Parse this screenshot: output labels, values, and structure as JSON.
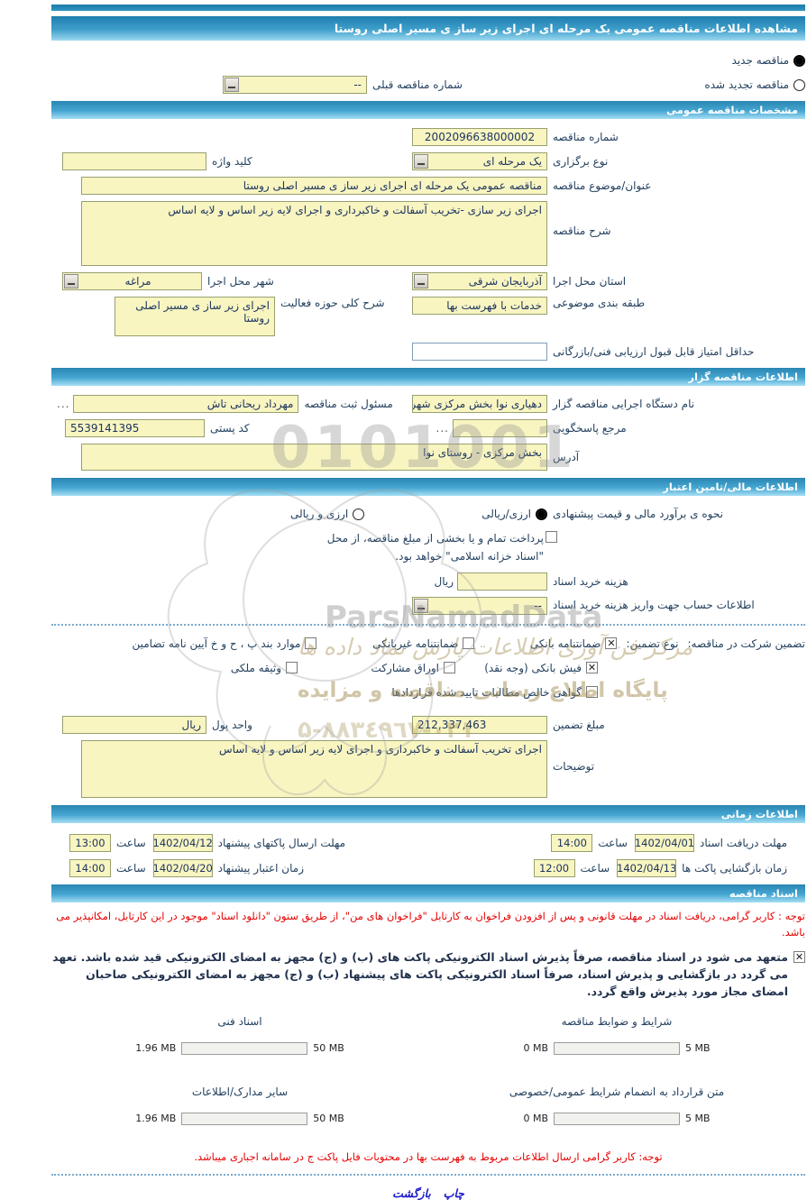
{
  "title": "مشاهده اطلاعات مناقصه عمومی یک مرحله ای اجرای زیر ساز ی مسیر اصلی روستا",
  "top": {
    "radio_new": {
      "label": "مناقصه جدید",
      "selected": true
    },
    "radio_renew": {
      "label": "مناقصه تجدید شده",
      "selected": false
    },
    "prev_no": {
      "label": "شماره مناقصه قبلی",
      "value": "--"
    }
  },
  "specs": {
    "header": "مشخصات مناقصه عمومی",
    "tender_no": {
      "label": "شماره مناقصه",
      "value": "2002096638000002"
    },
    "type": {
      "label": "نوع برگزاری",
      "value": "یک مرحله ای"
    },
    "keyword": {
      "label": "کلید واژه",
      "value": ""
    },
    "subject": {
      "label": "عنوان/موضوع مناقصه",
      "value": "مناقصه عمومی یک مرحله ای اجرای زیر ساز ی مسیر اصلی روستا"
    },
    "description": {
      "label": "شرح مناقصه",
      "value": "اجرای زیر سازی -تخریب آسفالت و خاکبرداری و اجرای لایه زیر اساس و لایه اساس"
    },
    "province": {
      "label": "استان محل اجرا",
      "value": "آذربایجان شرقی"
    },
    "city": {
      "label": "شهر محل اجرا",
      "value": "مراغه"
    },
    "category": {
      "label": "طبقه بندی موضوعی",
      "value": "خدمات با فهرست بها"
    },
    "activity": {
      "label": "شرح کلی حوزه فعالیت",
      "value": "اجرای زیر ساز ی مسیر اصلی روستا"
    },
    "min_score": {
      "label": "حداقل امتیاز قابل قبول ارزیابی فنی/بازرگانی",
      "value": ""
    }
  },
  "agency": {
    "header": "اطلاعات مناقصه گزار",
    "exec_body": {
      "label": "نام دستگاه اجرایی مناقصه گزار",
      "value": "دهیاری نوا بخش مرکزی شهر"
    },
    "registrar": {
      "label": "مسئول ثبت مناقصه",
      "value": "مهرداد ریحانی تاش",
      "more": "..."
    },
    "responder": {
      "label": "مرجع پاسخگویی",
      "value": "",
      "more": "..."
    },
    "postal_code": {
      "label": "کد پستی",
      "value": "5539141395"
    },
    "address": {
      "label": "آدرس",
      "value": "بخش مرکزی - روستای نوا"
    }
  },
  "financial": {
    "header": "اطلاعات مالی/تامین اعتبار",
    "estimate": {
      "label": "نحوه ی برآورد مالی و قیمت پیشنهادی",
      "option1": {
        "label": "ارزی/ریالی",
        "selected": true
      },
      "option2": {
        "label": "ارزی و ریالی",
        "selected": false
      }
    },
    "treasury": {
      "checked": false,
      "label": "پرداخت تمام و یا بخشی از مبلغ مناقصه، از محل \"اسناد خزانه اسلامی\" خواهد بود."
    },
    "doc_fee": {
      "label": "هزینه خرید اسناد",
      "value": "",
      "unit": "ریال"
    },
    "account": {
      "label": "اطلاعات حساب جهت واریز هزینه خرید اسناد",
      "value": "--"
    },
    "guarantee": {
      "title": "تضمین شرکت در مناقصه:",
      "type_label": "نوع تضمین:",
      "options": [
        {
          "label": "ضمانتنامه بانکی",
          "checked": true
        },
        {
          "label": "ضمانتنامه غیربانکی",
          "checked": false
        },
        {
          "label": "موارد بند پ ، ح و خ آیین نامه تضامین",
          "checked": false
        },
        {
          "label": "فیش بانکی (وجه نقد)",
          "checked": true
        },
        {
          "label": "اوراق مشارکت",
          "checked": false
        },
        {
          "label": "وثیقه ملکی",
          "checked": false
        },
        {
          "label": "گواهی خالص مطالبات تایید شده قراردادها",
          "checked": false
        }
      ]
    },
    "amount": {
      "label": "مبلغ تضمین",
      "value": "212,337,463"
    },
    "currency": {
      "label": "واحد پول",
      "value": "ریال"
    },
    "notes": {
      "label": "توضیحات",
      "value": "اجرای تخریب آسفالت و خاکبرداری و اجرای لایه زیر اساس و لایه اساس"
    }
  },
  "timing": {
    "header": "اطلاعات زمانی",
    "hour_label": "ساعت",
    "items": [
      {
        "label": "مهلت دریافت اسناد",
        "date": "1402/04/01",
        "time": "14:00"
      },
      {
        "label": "مهلت ارسال پاکتهای پیشنهاد",
        "date": "1402/04/12",
        "time": "13:00"
      },
      {
        "label": "زمان بازگشایی پاکت ها",
        "date": "1402/04/13",
        "time": "12:00"
      },
      {
        "label": "زمان اعتبار پیشنهاد",
        "date": "1402/04/20",
        "time": "14:00"
      }
    ]
  },
  "documents": {
    "header": "اسناد مناقصه",
    "notice1": "توجه : کاربر گرامی، دریافت اسناد در مهلت قانونی و پس از افزودن فراخوان به کارتابل \"فراخوان های من\"، از طریق ستون \"دانلود اسناد\" موجود در این کارتابل، امکانپذیر می باشد.",
    "commitment": {
      "checked": true,
      "text": "متعهد می شود در اسناد مناقصه، صرفاً پذیرش اسناد الکترونیکی پاکت های (ب) و (ج) مجهز به امضای الکترونیکی قید شده باشد. تعهد می گردد در بازگشایی و پذیرش اسناد، صرفاً اسناد الکترونیکی پاکت های پیشنهاد (ب) و (ج) مجهز به امضای الکترونیکی صاحبان امضای مجاز مورد پذیرش واقع گردد."
    },
    "uploads": [
      {
        "label": "شرایط و ضوابط مناقصه",
        "current": "0 MB",
        "max": "5 MB",
        "pct": 0
      },
      {
        "label": "اسناد فنی",
        "current": "1.96 MB",
        "max": "50 MB",
        "pct": 4
      },
      {
        "label": "متن قرارداد به انضمام شرایط عمومی/خصوصی",
        "current": "0 MB",
        "max": "5 MB",
        "pct": 0
      },
      {
        "label": "سایر مدارک/اطلاعات",
        "current": "1.96 MB",
        "max": "50 MB",
        "pct": 4
      }
    ],
    "notice2": "توجه: کاربر گرامی ارسال اطلاعات مربوط به فهرست بها در محتویات فایل پاکت ج در سامانه اجباری میباشد."
  },
  "footer": {
    "print": "چاپ",
    "back": "بازگشت"
  },
  "watermark": {
    "digits": "0101001",
    "brand": "ParsNamadData",
    "line1": "مرکز فن آوری اطلاعات پارس نماد داده ها",
    "line2": "پایگاه اطلاع رسانی مناقصه و مزایده",
    "line3": "۵-۸۸۳٤٩٦٧-۰۲۱"
  },
  "colors": {
    "header_blue": "#2a86b2",
    "field_yellow": "#f8f5c1",
    "notice_red": "#e60000",
    "progress_green": "#93c43c"
  }
}
